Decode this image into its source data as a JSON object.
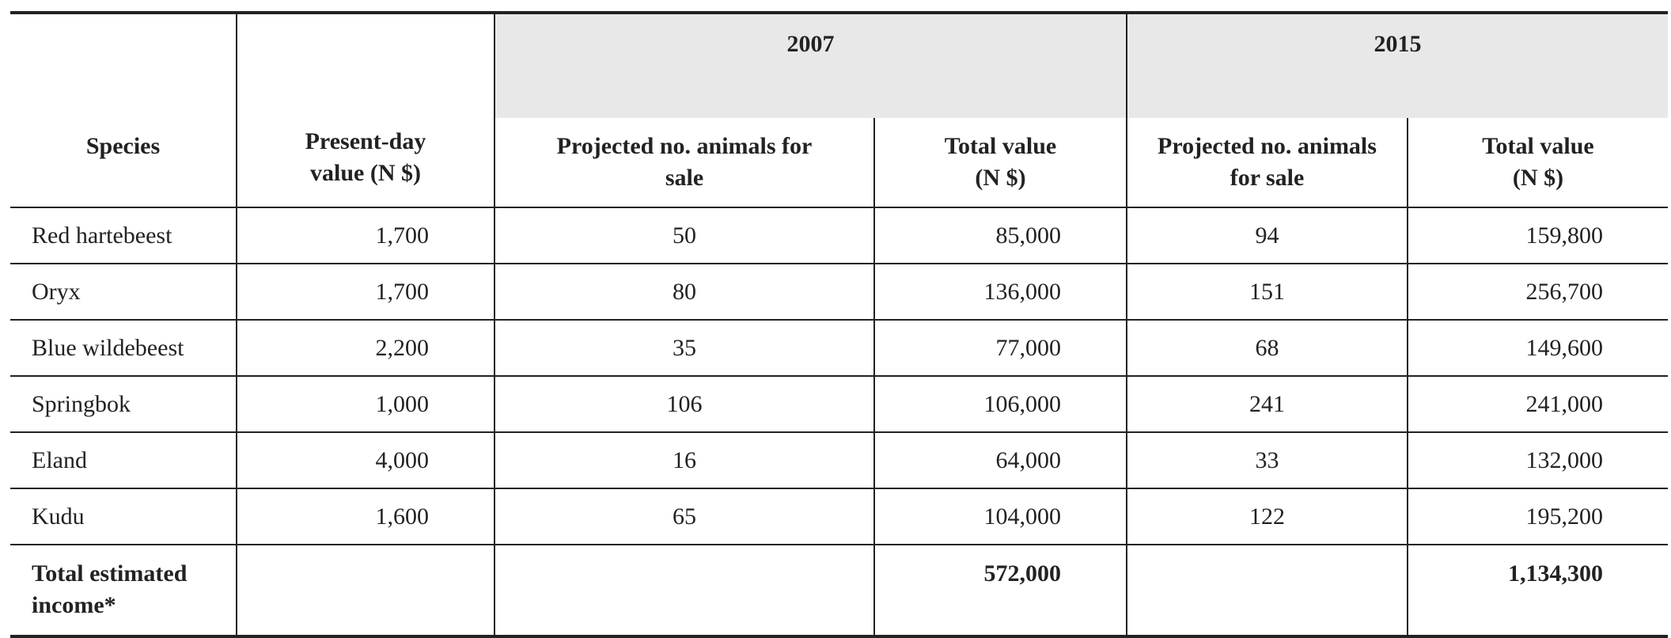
{
  "table": {
    "header": {
      "species": "Species",
      "present_value": "Present-day value (N $)",
      "groups": [
        {
          "year": "2007",
          "columns": [
            "Projected no. animals for sale",
            "Total value (N $)"
          ]
        },
        {
          "year": "2015",
          "columns": [
            "Projected no. animals for sale",
            "Total value (N $)"
          ]
        }
      ]
    },
    "rows": [
      [
        "Red hartebeest",
        "1,700",
        "50",
        "85,000",
        "94",
        "159,800"
      ],
      [
        "Oryx",
        "1,700",
        "80",
        "136,000",
        "151",
        "256,700"
      ],
      [
        "Blue wildebeest",
        "2,200",
        "35",
        "77,000",
        "68",
        "149,600"
      ],
      [
        "Springbok",
        "1,000",
        "106",
        "106,000",
        "241",
        "241,000"
      ],
      [
        "Eland",
        "4,000",
        "16",
        "64,000",
        "33",
        "132,000"
      ],
      [
        "Kudu",
        "1,600",
        "65",
        "104,000",
        "122",
        "195,200"
      ]
    ],
    "total": {
      "label": "Total estimated income*",
      "values": [
        "572,000",
        "1,134,300"
      ]
    }
  }
}
